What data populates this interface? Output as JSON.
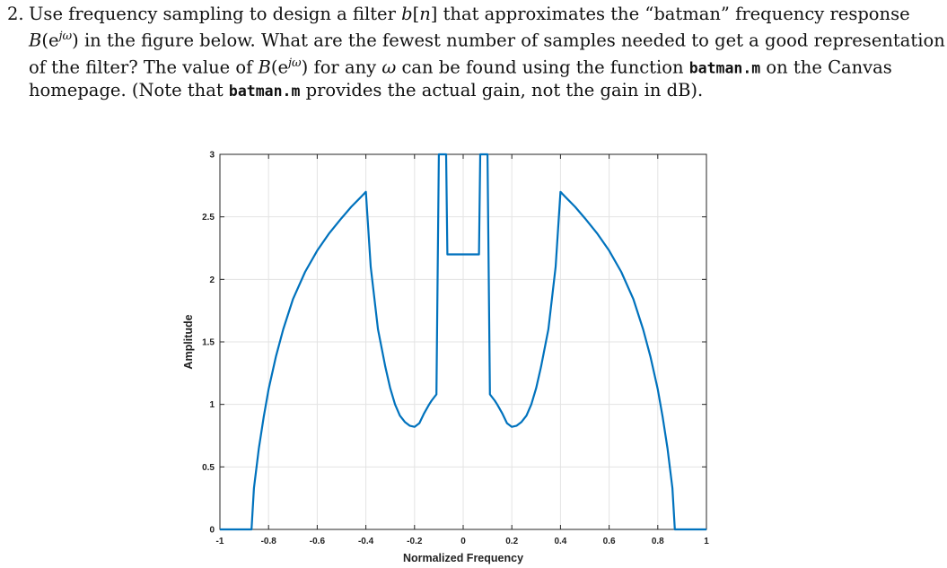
{
  "problem": {
    "number": "2.",
    "l1_a": "Use frequency sampling to design a filter ",
    "l1_b": "b",
    "l1_c": "[",
    "l1_d": "n",
    "l1_e": "] that approximates the “batman” frequency response",
    "l2_a": "B",
    "l2_b": "(e",
    "l2_c": "jω",
    "l2_d": ") in the figure below. What are the fewest number of samples needed to get a good representation",
    "l3_a": "of the filter? The value of ",
    "l3_b": "B",
    "l3_c": "(e",
    "l3_d": "jω",
    "l3_e": ") for any ",
    "l3_f": "ω",
    "l3_g": " can be found using the function ",
    "l3_code": "batman.m",
    "l3_h": " on the Canvas",
    "l4_a": "homepage. (Note that ",
    "l4_code": "batman.m",
    "l4_b": " provides the actual gain, not the gain in dB)."
  },
  "chart_data": {
    "type": "line",
    "xlabel": "Normalized Frequency",
    "ylabel": "Amplitude",
    "xlim": [
      -1,
      1
    ],
    "ylim": [
      0,
      3
    ],
    "grid": true,
    "line_color": "#0072BD",
    "xticks": [
      "-1",
      "-0.8",
      "-0.6",
      "-0.4",
      "-0.2",
      "0",
      "0.2",
      "0.4",
      "0.6",
      "0.8",
      "1"
    ],
    "yticks": [
      "0",
      "0.5",
      "1",
      "1.5",
      "2",
      "2.5",
      "3"
    ],
    "series": [
      {
        "x": [
          -1,
          -0.87,
          -0.86,
          -0.84,
          -0.82,
          -0.8,
          -0.77,
          -0.74,
          -0.7,
          -0.65,
          -0.6,
          -0.55,
          -0.5,
          -0.46,
          -0.43,
          -0.41,
          -0.405,
          -0.4,
          -0.38,
          -0.35,
          -0.32,
          -0.3,
          -0.28,
          -0.26,
          -0.24,
          -0.22,
          -0.2,
          -0.18,
          -0.16,
          -0.14,
          -0.13,
          -0.11,
          -0.1,
          -0.07,
          -0.065,
          0,
          0.065,
          0.07,
          0.1,
          0.11,
          0.13,
          0.14,
          0.16,
          0.18,
          0.2,
          0.22,
          0.24,
          0.26,
          0.28,
          0.3,
          0.32,
          0.35,
          0.38,
          0.4,
          0.405,
          0.41,
          0.43,
          0.46,
          0.5,
          0.55,
          0.6,
          0.65,
          0.7,
          0.74,
          0.77,
          0.8,
          0.82,
          0.84,
          0.86,
          0.87,
          1
        ],
        "y": [
          0,
          0,
          0.33,
          0.65,
          0.9,
          1.12,
          1.38,
          1.6,
          1.84,
          2.06,
          2.23,
          2.37,
          2.49,
          2.58,
          2.64,
          2.68,
          2.69,
          2.7,
          2.1,
          1.6,
          1.3,
          1.13,
          1.0,
          0.91,
          0.86,
          0.83,
          0.82,
          0.85,
          0.93,
          1.0,
          1.03,
          1.08,
          3.0,
          3.0,
          2.2,
          2.2,
          2.2,
          3.0,
          3.0,
          1.08,
          1.03,
          1.0,
          0.93,
          0.85,
          0.82,
          0.83,
          0.86,
          0.91,
          1.0,
          1.13,
          1.3,
          1.6,
          2.1,
          2.7,
          2.69,
          2.68,
          2.64,
          2.58,
          2.49,
          2.37,
          2.23,
          2.06,
          1.84,
          1.6,
          1.38,
          1.12,
          0.9,
          0.65,
          0.33,
          0,
          0
        ]
      }
    ]
  }
}
